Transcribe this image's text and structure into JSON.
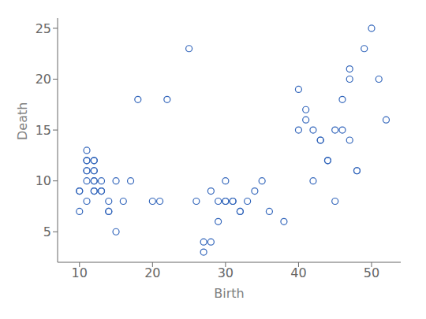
{
  "chart_data": {
    "type": "scatter",
    "xlabel": "Birth",
    "ylabel": "Death",
    "xlim": [
      7,
      54
    ],
    "ylim": [
      2,
      26
    ],
    "xticks": [
      10,
      20,
      30,
      40,
      50
    ],
    "yticks": [
      5,
      10,
      15,
      20,
      25
    ],
    "color": "#3366bb",
    "marker": "circle",
    "grid": false,
    "x": [
      10,
      10,
      10,
      11,
      11,
      11,
      11,
      11,
      11,
      11,
      12,
      12,
      12,
      12,
      12,
      12,
      12,
      12,
      13,
      13,
      13,
      14,
      14,
      14,
      15,
      15,
      16,
      17,
      18,
      20,
      21,
      22,
      25,
      26,
      27,
      27,
      28,
      28,
      29,
      29,
      30,
      30,
      30,
      31,
      31,
      32,
      32,
      33,
      34,
      35,
      36,
      38,
      40,
      40,
      41,
      41,
      42,
      42,
      43,
      43,
      44,
      44,
      45,
      45,
      46,
      46,
      47,
      47,
      47,
      48,
      48,
      49,
      50,
      51,
      52
    ],
    "values": [
      9,
      9,
      7,
      13,
      12,
      12,
      11,
      11,
      10,
      8,
      12,
      12,
      11,
      11,
      10,
      10,
      9,
      9,
      10,
      9,
      9,
      7,
      7,
      8,
      10,
      5,
      8,
      10,
      18,
      8,
      8,
      18,
      23,
      8,
      3,
      4,
      9,
      4,
      8,
      6,
      10,
      8,
      8,
      8,
      8,
      7,
      7,
      8,
      9,
      10,
      7,
      6,
      19,
      15,
      17,
      16,
      10,
      15,
      14,
      14,
      12,
      12,
      15,
      8,
      18,
      15,
      21,
      14,
      20,
      11,
      11,
      23,
      25,
      20,
      16
    ]
  }
}
